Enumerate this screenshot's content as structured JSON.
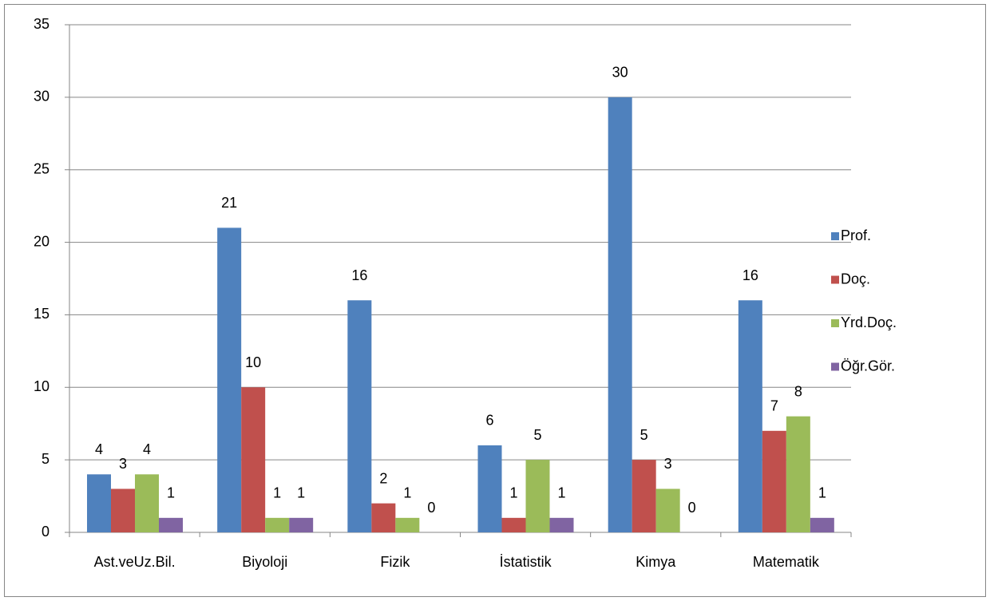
{
  "chart_data": {
    "type": "bar",
    "categories": [
      "Ast.veUz.Bil.",
      "Biyoloji",
      "Fizik",
      "İstatistik",
      "Kimya",
      "Matematik"
    ],
    "series": [
      {
        "name": "Prof.",
        "color": "#4f81bd",
        "values": [
          4,
          21,
          16,
          6,
          30,
          16
        ]
      },
      {
        "name": "Doç.",
        "color": "#c0504d",
        "values": [
          3,
          10,
          2,
          1,
          5,
          7
        ]
      },
      {
        "name": "Yrd.Doç.",
        "color": "#9bbb59",
        "values": [
          4,
          1,
          1,
          5,
          3,
          8
        ]
      },
      {
        "name": "Öğr.Gör.",
        "color": "#8064a2",
        "values": [
          1,
          1,
          0,
          1,
          0,
          1
        ]
      }
    ],
    "ylim": [
      0,
      35
    ],
    "yticks": [
      0,
      5,
      10,
      15,
      20,
      25,
      30,
      35
    ],
    "grid": true,
    "legend": "right"
  }
}
